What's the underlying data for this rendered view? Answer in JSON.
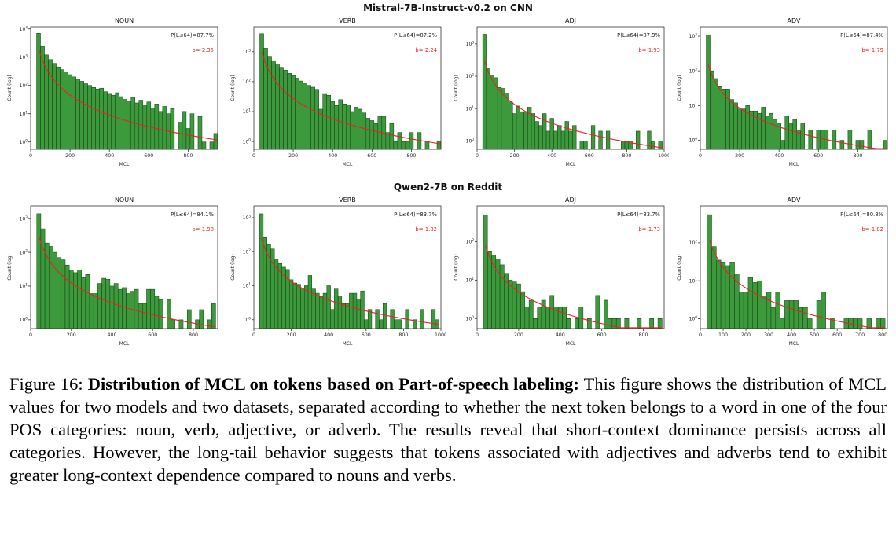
{
  "figure": {
    "rows": [
      {
        "title": "Mistral-7B-Instruct-v0.2 on CNN",
        "panel_indices": [
          0,
          1,
          2,
          3
        ]
      },
      {
        "title": "Qwen2-7B on Reddit",
        "panel_indices": [
          4,
          5,
          6,
          7
        ]
      }
    ]
  },
  "colors": {
    "bar_fill": "#3c9a3c",
    "bar_edge": "#123c12",
    "fit_line": "#e62222",
    "annotation_text": "#222222",
    "axis": "#333333"
  },
  "caption": {
    "prefix": "Figure 16: ",
    "bold": "Distribution of MCL on tokens based on Part-of-speech labeling:",
    "rest": " This figure shows the distribution of MCL values for two models and two datasets, separated according to whether the next token belongs to a word in one of the four POS categories: noun, verb, adjective, or adverb. The results reveal that short-context dominance persists across all categories. However, the long-tail behavior suggests that tokens associated with adjectives and adverbs tend to exhibit greater long-context dependence compared to nouns and verbs."
  },
  "chart_data": [
    {
      "type": "bar",
      "group": "Mistral-7B-Instruct-v0.2 on CNN",
      "title": "NOUN",
      "xlabel": "MCL",
      "ylabel": "Count (log)",
      "p_label": "P(L≤64)=87.7%",
      "b_label": "b=-2.35",
      "xlim": [
        0,
        950
      ],
      "x_ticks": [
        0,
        200,
        400,
        600,
        800
      ],
      "y_tick_exps": [
        0,
        1,
        2,
        3,
        4
      ],
      "bin_start": 30,
      "bin_width": 20,
      "counts": [
        7000,
        2400,
        1200,
        820,
        600,
        450,
        360,
        300,
        240,
        200,
        165,
        140,
        115,
        100,
        85,
        75,
        80,
        60,
        52,
        45,
        55,
        40,
        32,
        28,
        38,
        24,
        30,
        20,
        26,
        16,
        22,
        12,
        18,
        10,
        15,
        0,
        5,
        12,
        3,
        10,
        0,
        8,
        1,
        0,
        1,
        2
      ],
      "fit": {
        "x0": 40,
        "y0": 2000,
        "b": -2.35
      }
    },
    {
      "type": "bar",
      "group": "Mistral-7B-Instruct-v0.2 on CNN",
      "title": "VERB",
      "xlabel": "MCL",
      "ylabel": "Count (log)",
      "p_label": "P(L≤64)=87.2%",
      "b_label": "b=-2.24",
      "xlim": [
        0,
        950
      ],
      "x_ticks": [
        0,
        200,
        400,
        600,
        800
      ],
      "y_tick_exps": [
        0,
        1,
        2,
        3
      ],
      "bin_start": 30,
      "bin_width": 20,
      "counts": [
        4000,
        1300,
        700,
        500,
        380,
        300,
        240,
        190,
        160,
        130,
        105,
        90,
        75,
        65,
        55,
        12,
        40,
        35,
        22,
        16,
        25,
        18,
        17,
        10,
        14,
        12,
        9,
        6,
        5,
        4,
        7,
        7,
        2,
        4,
        1,
        2,
        1,
        1,
        2,
        0,
        2,
        0,
        1,
        0,
        0,
        1
      ],
      "fit": {
        "x0": 40,
        "y0": 1000,
        "b": -2.24
      }
    },
    {
      "type": "bar",
      "group": "Mistral-7B-Instruct-v0.2 on CNN",
      "title": "ADJ",
      "xlabel": "MCL",
      "ylabel": "Count (log)",
      "p_label": "P(L≤64)=87.9%",
      "b_label": "b=-1.93",
      "xlim": [
        0,
        1000
      ],
      "x_ticks": [
        0,
        200,
        400,
        600,
        800,
        1000
      ],
      "y_tick_exps": [
        0,
        1,
        2,
        3
      ],
      "bin_start": 30,
      "bin_width": 20,
      "counts": [
        2000,
        180,
        110,
        90,
        45,
        42,
        30,
        16,
        7,
        12,
        8,
        8,
        11,
        7,
        4,
        3,
        7,
        2,
        5,
        2,
        3,
        2,
        4,
        2,
        3,
        0,
        1,
        1,
        0,
        3,
        0,
        2,
        0,
        2,
        0,
        0,
        0,
        1,
        1,
        1,
        0,
        2,
        0,
        0,
        2,
        1,
        0,
        1
      ],
      "fit": {
        "x0": 40,
        "y0": 300,
        "b": -1.93
      }
    },
    {
      "type": "bar",
      "group": "Mistral-7B-Instruct-v0.2 on CNN",
      "title": "ADV",
      "xlabel": "MCL",
      "ylabel": "Count (log)",
      "p_label": "P(L≤64)=87.4%",
      "b_label": "b=-1.79",
      "xlim": [
        0,
        950
      ],
      "x_ticks": [
        0,
        200,
        400,
        600,
        800
      ],
      "y_tick_exps": [
        0,
        1,
        2,
        3
      ],
      "bin_start": 30,
      "bin_width": 20,
      "counts": [
        1100,
        100,
        60,
        35,
        30,
        30,
        15,
        12,
        8,
        8,
        10,
        7,
        7,
        6,
        9,
        5,
        6,
        4,
        3,
        1,
        5,
        3,
        4,
        2,
        3,
        0,
        2,
        0,
        2,
        2,
        2,
        0,
        2,
        0,
        1,
        0,
        2,
        0,
        1,
        1,
        0,
        2,
        0,
        0,
        0,
        1
      ],
      "fit": {
        "x0": 40,
        "y0": 150,
        "b": -1.79
      }
    },
    {
      "type": "bar",
      "group": "Qwen2-7B on Reddit",
      "title": "NOUN",
      "xlabel": "MCL",
      "ylabel": "Count (log)",
      "p_label": "P(L≤64)=84.1%",
      "b_label": "b=-1.98",
      "xlim": [
        0,
        920
      ],
      "x_ticks": [
        0,
        200,
        400,
        600,
        800
      ],
      "y_tick_exps": [
        0,
        1,
        2,
        3
      ],
      "bin_start": 30,
      "bin_width": 20,
      "counts": [
        1400,
        500,
        190,
        150,
        100,
        70,
        60,
        42,
        30,
        25,
        30,
        18,
        22,
        6,
        6,
        12,
        17,
        16,
        10,
        12,
        8,
        9,
        6,
        7,
        8,
        3,
        3,
        8,
        8,
        5,
        4,
        0,
        4,
        1,
        0,
        1,
        0,
        2,
        0,
        1,
        2,
        0,
        1,
        3
      ],
      "fit": {
        "x0": 40,
        "y0": 300,
        "b": -1.98
      }
    },
    {
      "type": "bar",
      "group": "Qwen2-7B on Reddit",
      "title": "VERB",
      "xlabel": "MCL",
      "ylabel": "Count (log)",
      "p_label": "P(L≤64)=83.7%",
      "b_label": "b=-1.82",
      "xlim": [
        0,
        1000
      ],
      "x_ticks": [
        0,
        200,
        400,
        600,
        800,
        1000
      ],
      "y_tick_exps": [
        0,
        1,
        2,
        3
      ],
      "bin_start": 30,
      "bin_width": 20,
      "counts": [
        1300,
        260,
        160,
        120,
        60,
        45,
        35,
        30,
        15,
        12,
        11,
        8,
        10,
        20,
        8,
        6,
        5,
        6,
        10,
        2,
        8,
        5,
        3,
        3,
        6,
        6,
        4,
        7,
        1,
        2,
        0,
        2,
        1,
        3,
        0,
        2,
        1,
        1,
        0,
        2,
        0,
        1,
        0,
        2,
        0,
        0,
        2,
        1
      ],
      "fit": {
        "x0": 40,
        "y0": 250,
        "b": -1.82
      }
    },
    {
      "type": "bar",
      "group": "Qwen2-7B on Reddit",
      "title": "ADJ",
      "xlabel": "MCL",
      "ylabel": "Count (log)",
      "p_label": "P(L≤64)=83.7%",
      "b_label": "b=-1.73",
      "xlim": [
        0,
        900
      ],
      "x_ticks": [
        0,
        200,
        400,
        600,
        800
      ],
      "y_tick_exps": [
        0,
        1,
        2
      ],
      "bin_start": 30,
      "bin_width": 20,
      "counts": [
        500,
        55,
        45,
        35,
        25,
        15,
        10,
        9,
        8,
        5,
        2,
        3,
        1,
        2,
        3,
        2,
        4,
        2,
        2,
        2,
        1,
        0,
        1,
        2,
        0,
        1,
        0,
        4,
        0,
        3,
        1,
        1,
        1,
        0,
        1,
        0,
        0,
        1,
        0,
        0,
        1,
        0,
        1
      ],
      "fit": {
        "x0": 40,
        "y0": 80,
        "b": -1.73
      }
    },
    {
      "type": "bar",
      "group": "Qwen2-7B on Reddit",
      "title": "ADV",
      "xlabel": "MCL",
      "ylabel": "Count (log)",
      "p_label": "P(L≤64)=80.8%",
      "b_label": "b=-1.82",
      "xlim": [
        0,
        820
      ],
      "x_ticks": [
        0,
        100,
        200,
        300,
        400,
        500,
        600,
        700,
        800
      ],
      "y_tick_exps": [
        0,
        1,
        2
      ],
      "bin_start": 30,
      "bin_width": 20,
      "counts": [
        550,
        80,
        35,
        30,
        25,
        30,
        15,
        5,
        5,
        12,
        9,
        10,
        4,
        5,
        2,
        5,
        1,
        3,
        3,
        3,
        2,
        2,
        1,
        0,
        3,
        5,
        0,
        1,
        0,
        0,
        1,
        1,
        1,
        1,
        0,
        1,
        0,
        1,
        1
      ],
      "fit": {
        "x0": 40,
        "y0": 120,
        "b": -1.82
      }
    }
  ]
}
